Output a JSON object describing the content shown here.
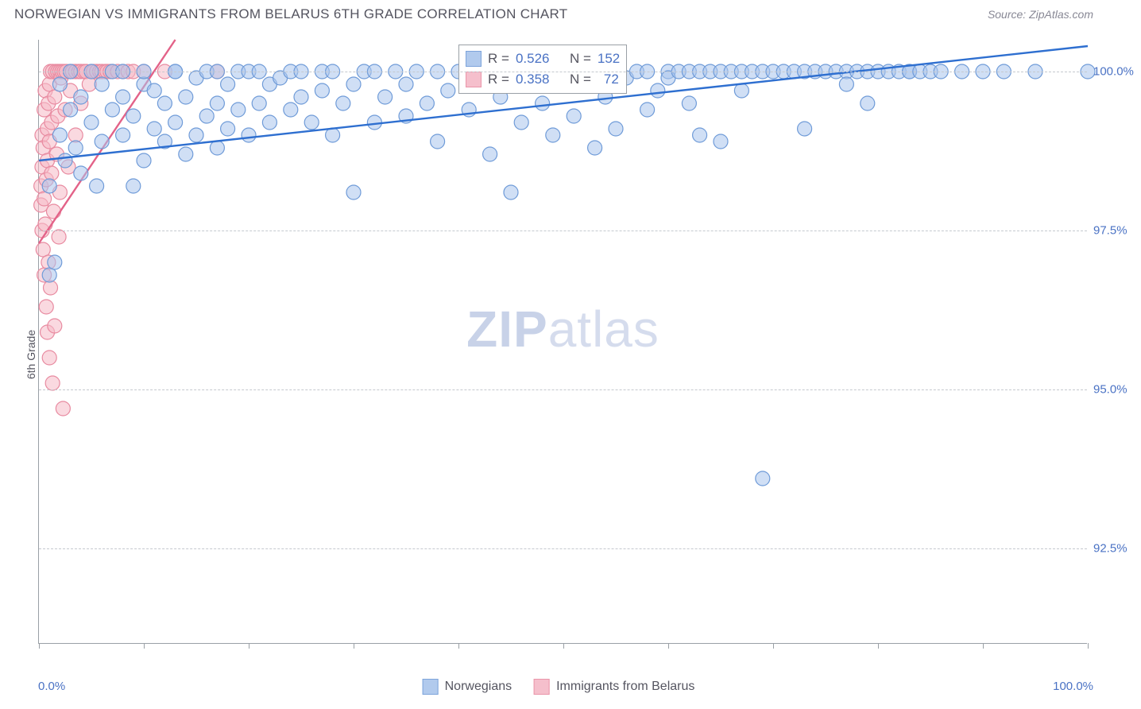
{
  "header": {
    "title": "NORWEGIAN VS IMMIGRANTS FROM BELARUS 6TH GRADE CORRELATION CHART",
    "source": "Source: ZipAtlas.com"
  },
  "watermark": {
    "zip": "ZIP",
    "atlas": "atlas"
  },
  "axes": {
    "ylabel": "6th Grade",
    "xmin_label": "0.0%",
    "xmax_label": "100.0%",
    "xlim": [
      0,
      100
    ],
    "ylim": [
      91.0,
      100.5
    ],
    "yticks": [
      {
        "v": 92.5,
        "label": "92.5%"
      },
      {
        "v": 95.0,
        "label": "95.0%"
      },
      {
        "v": 97.5,
        "label": "97.5%"
      },
      {
        "v": 100.0,
        "label": "100.0%"
      }
    ],
    "xticks": [
      0,
      10,
      20,
      30,
      40,
      50,
      60,
      70,
      80,
      90,
      100
    ]
  },
  "series": {
    "blue": {
      "label": "Norwegians",
      "fill": "#a9c5ec",
      "stroke": "#6f9bd8",
      "line_color": "#2e6fd0",
      "fill_opacity": 0.55,
      "marker_r": 9,
      "R": "0.526",
      "N": "152",
      "trend": {
        "x1": 0,
        "y1": 98.6,
        "x2": 100,
        "y2": 100.4
      },
      "points": [
        [
          1,
          96.8
        ],
        [
          1,
          98.2
        ],
        [
          1.5,
          97.0
        ],
        [
          2,
          99.0
        ],
        [
          2,
          99.8
        ],
        [
          2.5,
          98.6
        ],
        [
          3,
          99.4
        ],
        [
          3,
          100.0
        ],
        [
          3.5,
          98.8
        ],
        [
          4,
          99.6
        ],
        [
          4,
          98.4
        ],
        [
          5,
          100.0
        ],
        [
          5,
          99.2
        ],
        [
          5.5,
          98.2
        ],
        [
          6,
          99.8
        ],
        [
          6,
          98.9
        ],
        [
          7,
          99.4
        ],
        [
          7,
          100.0
        ],
        [
          8,
          99.0
        ],
        [
          8,
          99.6
        ],
        [
          8,
          100.0
        ],
        [
          9,
          98.2
        ],
        [
          9,
          99.3
        ],
        [
          10,
          99.8
        ],
        [
          10,
          98.6
        ],
        [
          10,
          100.0
        ],
        [
          11,
          99.1
        ],
        [
          11,
          99.7
        ],
        [
          12,
          98.9
        ],
        [
          12,
          99.5
        ],
        [
          13,
          100.0
        ],
        [
          13,
          99.2
        ],
        [
          13,
          100.0
        ],
        [
          14,
          98.7
        ],
        [
          14,
          99.6
        ],
        [
          15,
          99.0
        ],
        [
          15,
          99.9
        ],
        [
          16,
          99.3
        ],
        [
          16,
          100.0
        ],
        [
          17,
          98.8
        ],
        [
          17,
          99.5
        ],
        [
          17,
          100.0
        ],
        [
          18,
          99.1
        ],
        [
          18,
          99.8
        ],
        [
          19,
          100.0
        ],
        [
          19,
          99.4
        ],
        [
          20,
          99.0
        ],
        [
          20,
          100.0
        ],
        [
          21,
          99.5
        ],
        [
          21,
          100.0
        ],
        [
          22,
          99.2
        ],
        [
          22,
          99.8
        ],
        [
          23,
          99.9
        ],
        [
          24,
          100.0
        ],
        [
          24,
          99.4
        ],
        [
          25,
          99.6
        ],
        [
          25,
          100.0
        ],
        [
          26,
          99.2
        ],
        [
          27,
          100.0
        ],
        [
          27,
          99.7
        ],
        [
          28,
          99.0
        ],
        [
          28,
          100.0
        ],
        [
          29,
          99.5
        ],
        [
          30,
          99.8
        ],
        [
          30,
          98.1
        ],
        [
          31,
          100.0
        ],
        [
          32,
          99.2
        ],
        [
          32,
          100.0
        ],
        [
          33,
          99.6
        ],
        [
          34,
          100.0
        ],
        [
          35,
          99.3
        ],
        [
          35,
          99.8
        ],
        [
          36,
          100.0
        ],
        [
          37,
          99.5
        ],
        [
          38,
          100.0
        ],
        [
          38,
          98.9
        ],
        [
          39,
          99.7
        ],
        [
          40,
          100.0
        ],
        [
          41,
          99.4
        ],
        [
          42,
          100.0
        ],
        [
          43,
          98.7
        ],
        [
          44,
          99.6
        ],
        [
          45,
          100.0
        ],
        [
          45,
          98.1
        ],
        [
          46,
          99.2
        ],
        [
          47,
          100.0
        ],
        [
          48,
          99.5
        ],
        [
          49,
          99.0
        ],
        [
          50,
          100.0
        ],
        [
          50,
          99.8
        ],
        [
          51,
          99.3
        ],
        [
          52,
          100.0
        ],
        [
          53,
          98.8
        ],
        [
          54,
          99.6
        ],
        [
          55,
          100.0
        ],
        [
          55,
          99.1
        ],
        [
          56,
          99.9
        ],
        [
          57,
          100.0
        ],
        [
          58,
          99.4
        ],
        [
          58,
          100.0
        ],
        [
          59,
          99.7
        ],
        [
          60,
          100.0
        ],
        [
          60,
          99.9
        ],
        [
          61,
          100.0
        ],
        [
          62,
          100.0
        ],
        [
          62,
          99.5
        ],
        [
          63,
          100.0
        ],
        [
          63,
          99.0
        ],
        [
          64,
          100.0
        ],
        [
          65,
          100.0
        ],
        [
          65,
          98.9
        ],
        [
          66,
          100.0
        ],
        [
          67,
          100.0
        ],
        [
          67,
          99.7
        ],
        [
          68,
          100.0
        ],
        [
          69,
          100.0
        ],
        [
          69,
          93.6
        ],
        [
          70,
          100.0
        ],
        [
          71,
          100.0
        ],
        [
          72,
          100.0
        ],
        [
          73,
          100.0
        ],
        [
          73,
          99.1
        ],
        [
          74,
          100.0
        ],
        [
          75,
          100.0
        ],
        [
          76,
          100.0
        ],
        [
          77,
          100.0
        ],
        [
          77,
          99.8
        ],
        [
          78,
          100.0
        ],
        [
          79,
          100.0
        ],
        [
          79,
          99.5
        ],
        [
          80,
          100.0
        ],
        [
          81,
          100.0
        ],
        [
          82,
          100.0
        ],
        [
          83,
          100.0
        ],
        [
          83,
          100.0
        ],
        [
          84,
          100.0
        ],
        [
          85,
          100.0
        ],
        [
          86,
          100.0
        ],
        [
          88,
          100.0
        ],
        [
          90,
          100.0
        ],
        [
          92,
          100.0
        ],
        [
          95,
          100.0
        ],
        [
          100,
          100.0
        ]
      ]
    },
    "pink": {
      "label": "Immigrants from Belarus",
      "fill": "#f5b9c7",
      "stroke": "#e88aa0",
      "line_color": "#e36288",
      "fill_opacity": 0.55,
      "marker_r": 9,
      "R": "0.358",
      "N": "72",
      "trend": {
        "x1": 0,
        "y1": 97.3,
        "x2": 13,
        "y2": 100.5
      },
      "points": [
        [
          0.2,
          98.2
        ],
        [
          0.2,
          97.9
        ],
        [
          0.3,
          98.5
        ],
        [
          0.3,
          97.5
        ],
        [
          0.3,
          99.0
        ],
        [
          0.4,
          98.8
        ],
        [
          0.4,
          97.2
        ],
        [
          0.5,
          99.4
        ],
        [
          0.5,
          96.8
        ],
        [
          0.5,
          98.0
        ],
        [
          0.6,
          99.7
        ],
        [
          0.6,
          97.6
        ],
        [
          0.7,
          98.3
        ],
        [
          0.7,
          96.3
        ],
        [
          0.8,
          99.1
        ],
        [
          0.8,
          95.9
        ],
        [
          0.8,
          98.6
        ],
        [
          0.9,
          97.0
        ],
        [
          0.9,
          99.5
        ],
        [
          1.0,
          95.5
        ],
        [
          1.0,
          98.9
        ],
        [
          1.0,
          99.8
        ],
        [
          1.1,
          96.6
        ],
        [
          1.1,
          100.0
        ],
        [
          1.2,
          98.4
        ],
        [
          1.2,
          99.2
        ],
        [
          1.3,
          95.1
        ],
        [
          1.3,
          100.0
        ],
        [
          1.4,
          97.8
        ],
        [
          1.5,
          99.6
        ],
        [
          1.5,
          96.0
        ],
        [
          1.6,
          100.0
        ],
        [
          1.7,
          98.7
        ],
        [
          1.8,
          100.0
        ],
        [
          1.8,
          99.3
        ],
        [
          1.9,
          97.4
        ],
        [
          2.0,
          100.0
        ],
        [
          2.0,
          98.1
        ],
        [
          2.1,
          99.9
        ],
        [
          2.2,
          100.0
        ],
        [
          2.3,
          94.7
        ],
        [
          2.4,
          100.0
        ],
        [
          2.5,
          99.4
        ],
        [
          2.6,
          100.0
        ],
        [
          2.8,
          98.5
        ],
        [
          3.0,
          100.0
        ],
        [
          3.0,
          99.7
        ],
        [
          3.2,
          100.0
        ],
        [
          3.5,
          99.0
        ],
        [
          3.5,
          100.0
        ],
        [
          3.8,
          100.0
        ],
        [
          4.0,
          99.5
        ],
        [
          4.0,
          100.0
        ],
        [
          4.3,
          100.0
        ],
        [
          4.5,
          100.0
        ],
        [
          4.8,
          99.8
        ],
        [
          5.0,
          100.0
        ],
        [
          5.2,
          100.0
        ],
        [
          5.5,
          100.0
        ],
        [
          5.8,
          100.0
        ],
        [
          6.0,
          100.0
        ],
        [
          6.3,
          100.0
        ],
        [
          6.5,
          100.0
        ],
        [
          6.8,
          100.0
        ],
        [
          7.0,
          100.0
        ],
        [
          7.5,
          100.0
        ],
        [
          8.0,
          100.0
        ],
        [
          8.5,
          100.0
        ],
        [
          9.0,
          100.0
        ],
        [
          10.0,
          100.0
        ],
        [
          12.0,
          100.0
        ],
        [
          17.0,
          100.0
        ]
      ]
    }
  },
  "stats_labels": {
    "R": "R =",
    "N": "N ="
  },
  "legend": {
    "items": [
      {
        "key": "blue",
        "label": "Norwegians"
      },
      {
        "key": "pink",
        "label": "Immigrants from Belarus"
      }
    ]
  }
}
